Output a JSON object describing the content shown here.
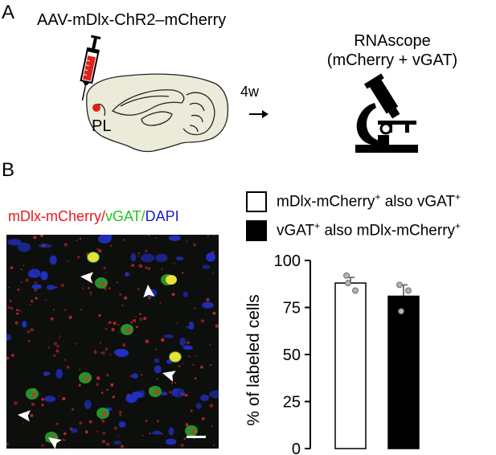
{
  "panel_a": {
    "letter": "A",
    "virus_label": "AAV-mDlx-ChR2–mCherry",
    "region_label": "PL",
    "time_label": "4w",
    "method_line1": "RNAscope",
    "method_line2": "(mCherry + vGAT)",
    "injection_color": "#e0201a"
  },
  "panel_b": {
    "letter": "B",
    "image_title": {
      "part1": "mDlx-mCherry/",
      "part2": "vGAT/",
      "part3": "DAPI",
      "color1": "#e8191d",
      "color2": "#1fc41f",
      "color3": "#1b1bd6"
    },
    "legend": [
      {
        "main": "mDlx-mCherry",
        "sup1": "+",
        "mid": " also vGAT",
        "sup2": "+",
        "fill": "#ffffff"
      },
      {
        "main": "vGAT",
        "sup1": "+",
        "mid": " also mDlx-mCherry",
        "sup2": "+",
        "fill": "#000000"
      }
    ]
  },
  "chart_data": {
    "type": "bar",
    "categories": [
      "mDlx-mCherry+ also vGAT+",
      "vGAT+ also mDlx-mCherry+"
    ],
    "values": [
      88,
      81
    ],
    "errors": [
      3,
      6
    ],
    "points": [
      [
        92,
        84,
        88
      ],
      [
        87,
        84,
        73
      ]
    ],
    "ylabel": "% of labeled cells",
    "yticks": [
      0,
      25,
      50,
      75,
      100
    ],
    "ylim": [
      0,
      100
    ],
    "bar_fills": [
      "#ffffff",
      "#000000"
    ],
    "grid": false
  }
}
